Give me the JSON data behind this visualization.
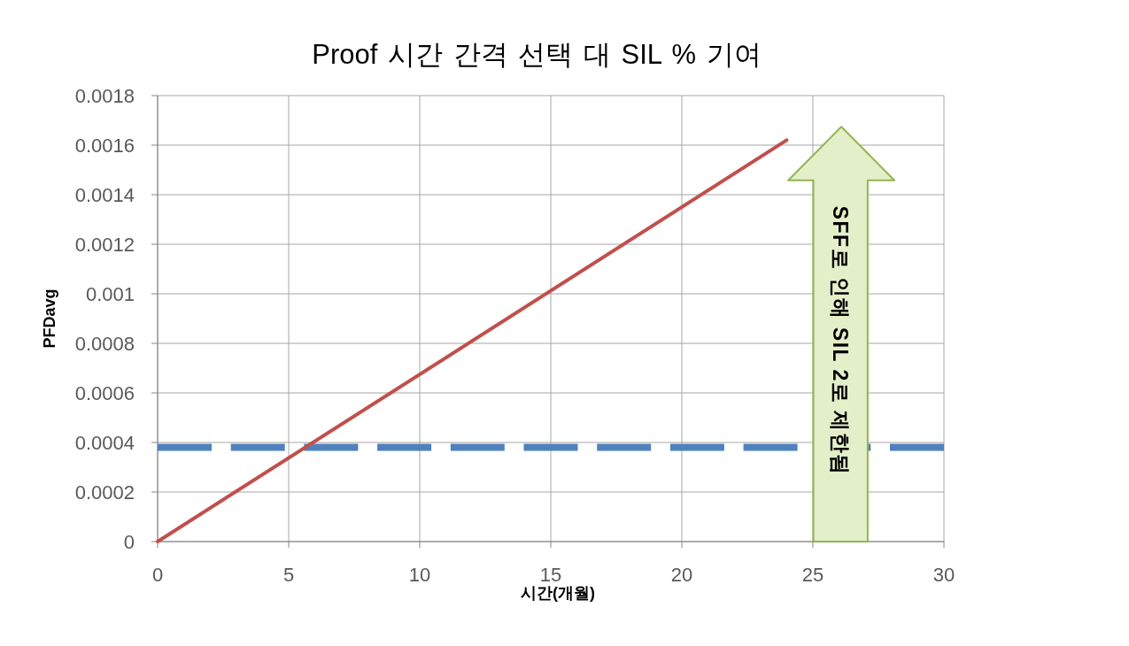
{
  "chart_data": {
    "type": "line",
    "title": "Proof 시간 간격 선택 대 SIL % 기여",
    "xlabel": "시간(개월)",
    "ylabel": "PFDavg",
    "x": [
      0,
      24
    ],
    "series": [
      {
        "color": "#c0504d",
        "values": [
          0,
          0.00162
        ]
      }
    ],
    "xlim": [
      0,
      30
    ],
    "xticks": [
      0,
      5,
      10,
      15,
      20,
      25,
      30
    ],
    "ylim": [
      0,
      0.0018
    ],
    "yticks": [
      0,
      0.0002,
      0.0004,
      0.0006,
      0.0008,
      0.001,
      0.0012,
      0.0014,
      0.0016,
      0.0018
    ],
    "grid": true,
    "marker": "none",
    "line_style": "solid",
    "ref_lines": [
      {
        "axis": "y",
        "value": 0.00038,
        "color": "#4f81bd",
        "line_style": "dashed"
      }
    ],
    "annotations": [
      "SFF로 인해 SIL 2로 제한됨"
    ]
  }
}
